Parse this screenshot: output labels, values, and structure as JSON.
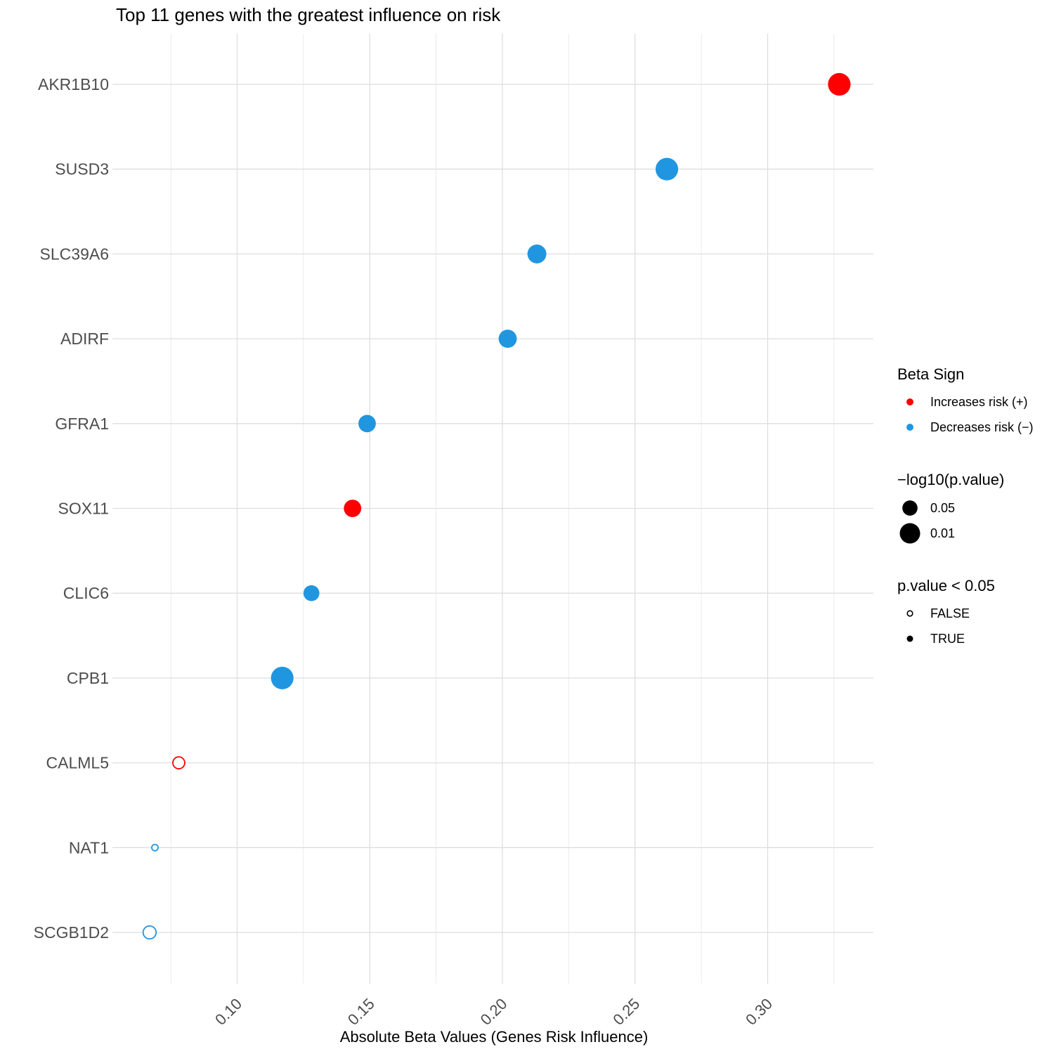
{
  "chart_data": {
    "type": "scatter",
    "title": "Top 11 genes with the greatest influence on risk",
    "xlabel": "Absolute Beta Values (Genes Risk Influence)",
    "ylabel": "",
    "xlim": [
      0.047,
      0.34
    ],
    "xticks": [
      "0.10",
      "0.15",
      "0.20",
      "0.25",
      "0.30"
    ],
    "xtick_values": [
      0.1,
      0.15,
      0.2,
      0.25,
      0.3
    ],
    "grid": true,
    "legend_position": "right",
    "categories": [
      "AKR1B10",
      "SUSD3",
      "SLC39A6",
      "ADIRF",
      "GFRA1",
      "SOX11",
      "CLIC6",
      "CPB1",
      "CALML5",
      "NAT1",
      "SCGB1D2"
    ],
    "points": [
      {
        "gene": "AKR1B10",
        "x": 0.327,
        "beta_sign": "Increases risk (+)",
        "neg_log10_p": 2.3,
        "significant": true
      },
      {
        "gene": "SUSD3",
        "x": 0.262,
        "beta_sign": "Decreases risk (−)",
        "neg_log10_p": 2.3,
        "significant": true
      },
      {
        "gene": "SLC39A6",
        "x": 0.213,
        "beta_sign": "Decreases risk (−)",
        "neg_log10_p": 1.8,
        "significant": true
      },
      {
        "gene": "ADIRF",
        "x": 0.202,
        "beta_sign": "Decreases risk (−)",
        "neg_log10_p": 1.7,
        "significant": true
      },
      {
        "gene": "GFRA1",
        "x": 0.149,
        "beta_sign": "Decreases risk (−)",
        "neg_log10_p": 1.6,
        "significant": true
      },
      {
        "gene": "SOX11",
        "x": 0.1435,
        "beta_sign": "Increases risk (+)",
        "neg_log10_p": 1.6,
        "significant": true
      },
      {
        "gene": "CLIC6",
        "x": 0.128,
        "beta_sign": "Decreases risk (−)",
        "neg_log10_p": 1.4,
        "significant": true
      },
      {
        "gene": "CPB1",
        "x": 0.117,
        "beta_sign": "Decreases risk (−)",
        "neg_log10_p": 2.3,
        "significant": true
      },
      {
        "gene": "CALML5",
        "x": 0.078,
        "beta_sign": "Increases risk (+)",
        "neg_log10_p": 0.85,
        "significant": false
      },
      {
        "gene": "NAT1",
        "x": 0.069,
        "beta_sign": "Decreases risk (−)",
        "neg_log10_p": 0.1,
        "significant": false
      },
      {
        "gene": "SCGB1D2",
        "x": 0.067,
        "beta_sign": "Decreases risk (−)",
        "neg_log10_p": 1.0,
        "significant": false
      }
    ],
    "legend": {
      "color": {
        "title": "Beta Sign",
        "entries": [
          {
            "label": "Increases risk (+)",
            "color": "#ff0000"
          },
          {
            "label": "Decreases risk (−)",
            "color": "#2196e0"
          }
        ]
      },
      "size": {
        "title": "−log10(p.value)",
        "entries": [
          {
            "label": "0.05",
            "neg_log10_p": 1.301
          },
          {
            "label": "0.01",
            "neg_log10_p": 2.0
          }
        ]
      },
      "shape": {
        "title": "p.value < 0.05",
        "entries": [
          {
            "label": "FALSE",
            "filled": false
          },
          {
            "label": "TRUE",
            "filled": true
          }
        ]
      }
    }
  }
}
